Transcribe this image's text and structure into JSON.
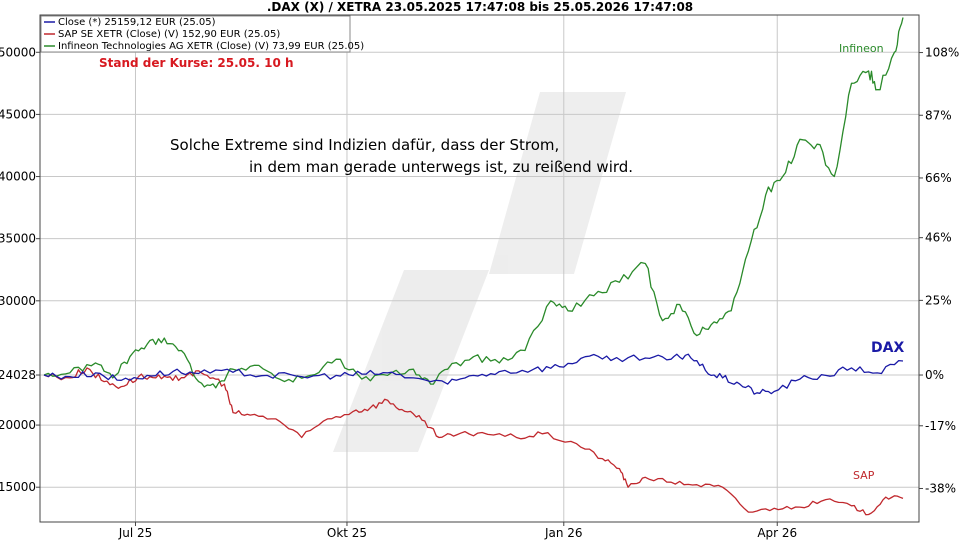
{
  "chart_data": {
    "type": "line",
    "title": ".DAX (X) / XETRA 23.05.2025 17:47:08 bis 25.05.2026 17:47:08",
    "stand_text": "Stand der Kurse: 25.05. 10 h",
    "annotation_lines": [
      "Solche Extreme sind Indizien dafür, dass der Strom,",
      "in dem man gerade unterwegs ist, zu reißend wird."
    ],
    "x_labels": [
      "Jul 25",
      "Okt 25",
      "Jan 26",
      "Apr 26"
    ],
    "x_label_positions": [
      0.1065,
      0.3527,
      0.6051,
      0.8536
    ],
    "left_axis": {
      "ticks": [
        15000,
        20000,
        24028,
        30000,
        35000,
        40000,
        45000,
        50000
      ],
      "labels": [
        "15000",
        "20000",
        "24028",
        "30000",
        "35000",
        "40000",
        "45000",
        "50000"
      ],
      "range": [
        12200,
        53000
      ]
    },
    "right_axis": {
      "ticks": [
        -38,
        -17,
        0,
        25,
        46,
        66,
        87,
        108
      ],
      "labels": [
        "-38%",
        "-17%",
        "0%",
        "25%",
        "46%",
        "66%",
        "87%",
        "108%"
      ]
    },
    "base_value": 24028,
    "grid": true,
    "legend": [
      {
        "label": "Close (*) 25159,12 EUR (25.05)",
        "color": "#1a1aa6"
      },
      {
        "label": "SAP SE XETR (Close) (V) 152,90 EUR (25.05)",
        "color": "#c0282d"
      },
      {
        "label": "Infineon Technologies AG XETR (Close) (V) 73,99 EUR (25.05)",
        "color": "#2a8a2a"
      }
    ],
    "series": [
      {
        "name": "DAX",
        "color": "#1a1aa6",
        "x": [
          0,
          0.03,
          0.06,
          0.09,
          0.12,
          0.15,
          0.18,
          0.22,
          0.26,
          0.3,
          0.34,
          0.37,
          0.4,
          0.43,
          0.47,
          0.5,
          0.53,
          0.57,
          0.6,
          0.63,
          0.66,
          0.7,
          0.73,
          0.75,
          0.77,
          0.79,
          0.81,
          0.83,
          0.85,
          0.88,
          0.91,
          0.94,
          0.97,
          1.0
        ],
        "y": [
          24028,
          23900,
          24200,
          23600,
          24000,
          24300,
          24150,
          24250,
          24000,
          23900,
          24000,
          24100,
          24200,
          23800,
          23300,
          24000,
          24300,
          24500,
          24700,
          25500,
          25200,
          25400,
          25300,
          25700,
          24400,
          23800,
          23300,
          22600,
          22700,
          23700,
          24000,
          24600,
          24200,
          25159
        ]
      },
      {
        "name": "SAP",
        "color": "#c0282d",
        "x": [
          0,
          0.03,
          0.05,
          0.07,
          0.09,
          0.11,
          0.13,
          0.15,
          0.17,
          0.19,
          0.21,
          0.22,
          0.24,
          0.27,
          0.3,
          0.33,
          0.36,
          0.38,
          0.4,
          0.42,
          0.44,
          0.46,
          0.48,
          0.51,
          0.55,
          0.58,
          0.62,
          0.65,
          0.67,
          0.68,
          0.7,
          0.73,
          0.76,
          0.79,
          0.82,
          0.85,
          0.88,
          0.91,
          0.94,
          0.96,
          0.98,
          1.0
        ],
        "y": [
          24028,
          23800,
          24600,
          23500,
          23100,
          23900,
          23800,
          23600,
          24200,
          24000,
          23300,
          21000,
          20800,
          20500,
          19000,
          20500,
          21100,
          21400,
          22000,
          21100,
          20400,
          19000,
          19200,
          19400,
          19000,
          19300,
          18500,
          17300,
          16500,
          15000,
          15800,
          15400,
          15200,
          15000,
          13000,
          13300,
          13400,
          14000,
          13500,
          12800,
          14200,
          14100
        ]
      },
      {
        "name": "Infineon",
        "color": "#2a8a2a",
        "x": [
          0,
          0.03,
          0.06,
          0.08,
          0.1,
          0.12,
          0.14,
          0.16,
          0.18,
          0.2,
          0.22,
          0.25,
          0.28,
          0.31,
          0.34,
          0.37,
          0.4,
          0.43,
          0.45,
          0.47,
          0.5,
          0.53,
          0.56,
          0.59,
          0.61,
          0.64,
          0.67,
          0.7,
          0.72,
          0.74,
          0.76,
          0.78,
          0.8,
          0.82,
          0.84,
          0.86,
          0.88,
          0.9,
          0.92,
          0.94,
          0.96,
          0.97,
          0.99,
          1.0
        ],
        "y": [
          24028,
          24200,
          25000,
          23800,
          25500,
          26500,
          27000,
          26000,
          23500,
          23000,
          24500,
          24800,
          23500,
          24000,
          25300,
          23700,
          24000,
          24500,
          23300,
          24500,
          25500,
          25000,
          26000,
          30000,
          29200,
          30400,
          31500,
          33000,
          28400,
          29700,
          27200,
          28300,
          29200,
          34000,
          38500,
          40000,
          43000,
          42600,
          40000,
          47500,
          48500,
          47000,
          50000,
          52800
        ]
      }
    ],
    "end_labels": [
      {
        "text": "Infineon",
        "color": "#2a8a2a"
      },
      {
        "text": "DAX",
        "color": "#1a1aa6"
      },
      {
        "text": "SAP",
        "color": "#c0282d"
      }
    ]
  }
}
